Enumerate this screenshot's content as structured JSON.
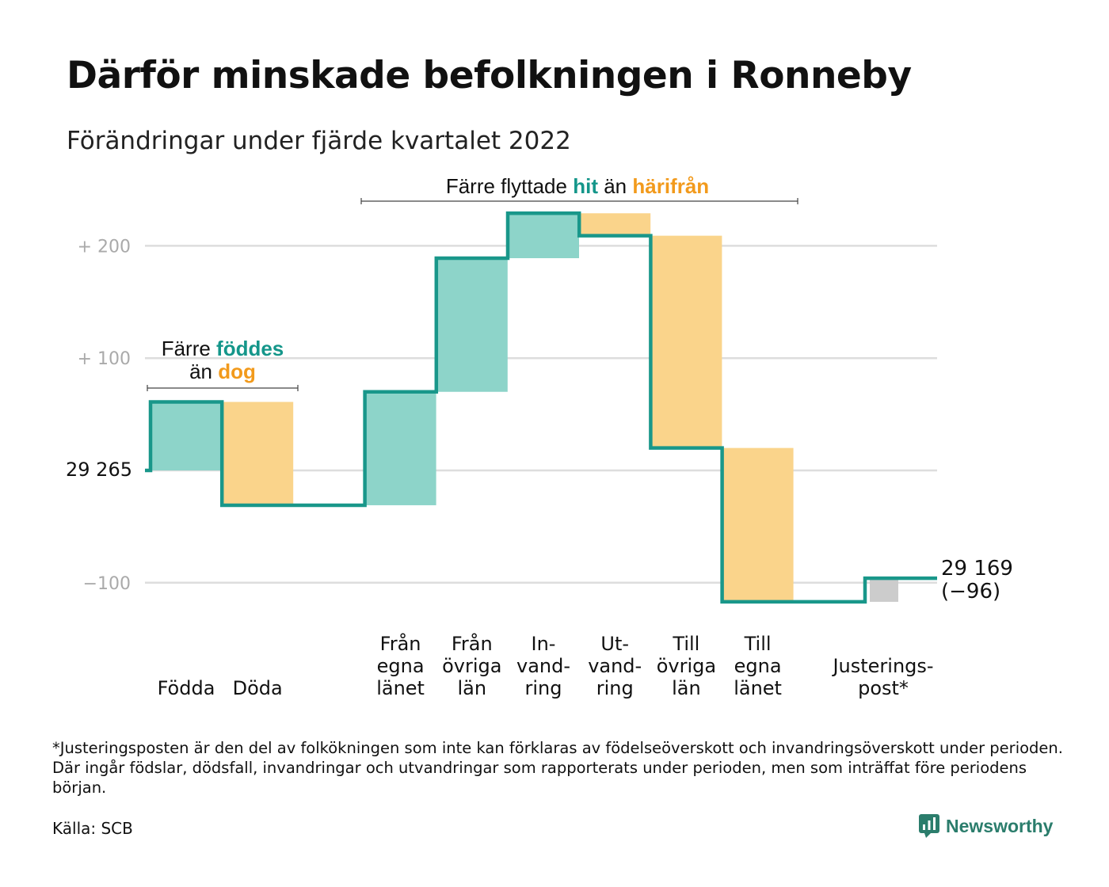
{
  "header": {
    "title": "Därför minskade befolkningen i Ronneby",
    "subtitle": "Förändringar under fjärde kvartalet 2022"
  },
  "colors": {
    "increase": "#8dd4c9",
    "decrease": "#fad48b",
    "adjustment": "#cccccc",
    "line": "#19978a",
    "accent_teal": "#14968a",
    "accent_orange": "#f29a1c",
    "grid": "#dddddd",
    "tick": "#aaaaaa"
  },
  "annotations": {
    "births": {
      "line1_prefix": "Färre ",
      "line1_highlight": "föddes",
      "line2_prefix": "än ",
      "line2_highlight": "dog"
    },
    "migration": {
      "prefix": "Färre flyttade ",
      "highlight1": "hit",
      "middle": " än ",
      "highlight2": "härifrån"
    }
  },
  "chart_data": {
    "type": "waterfall",
    "start": {
      "label": "29 265",
      "value": 29265
    },
    "end": {
      "label": "29 169",
      "change_label": "(−96)",
      "value": 29169,
      "change": -96
    },
    "y_axis": {
      "reference": "start value",
      "ticks": [
        {
          "value": 200,
          "label": "+ 200"
        },
        {
          "value": 100,
          "label": "+ 100"
        },
        {
          "value": 0,
          "label": ""
        },
        {
          "value": -100,
          "label": "−100"
        }
      ],
      "ylim": [
        -130,
        230
      ]
    },
    "steps": [
      {
        "lines": [
          "Födda"
        ],
        "change": 61,
        "kind": "increase"
      },
      {
        "lines": [
          "Döda"
        ],
        "change": -92,
        "kind": "decrease"
      },
      {
        "lines": [],
        "change": 0,
        "kind": "gap"
      },
      {
        "lines": [
          "Från",
          "egna",
          "länet"
        ],
        "change": 101,
        "kind": "increase"
      },
      {
        "lines": [
          "Från",
          "övriga",
          "län"
        ],
        "change": 119,
        "kind": "increase"
      },
      {
        "lines": [
          "In-",
          "vand-",
          "ring"
        ],
        "change": 40,
        "kind": "increase"
      },
      {
        "lines": [
          "Ut-",
          "vand-",
          "ring"
        ],
        "change": -20,
        "kind": "decrease"
      },
      {
        "lines": [
          "Till",
          "övriga",
          "län"
        ],
        "change": -189,
        "kind": "decrease"
      },
      {
        "lines": [
          "Till",
          "egna",
          "länet"
        ],
        "change": -137,
        "kind": "decrease"
      },
      {
        "lines": [],
        "change": 0,
        "kind": "gap"
      },
      {
        "lines": [
          "Justerings-",
          "post*"
        ],
        "change": 21,
        "kind": "adjustment"
      }
    ]
  },
  "footnote": "*Justeringsposten är den del av folkökningen som inte kan förklaras av födelseöverskott och invandringsöverskott under perioden. Där ingår födslar, dödsfall, invandringar och utvandringar som rapporterats under perioden, men som inträffat före periodens början.",
  "source": "Källa: SCB",
  "brand": {
    "name": "Newsworthy",
    "icon": "chart-bubble-icon"
  }
}
